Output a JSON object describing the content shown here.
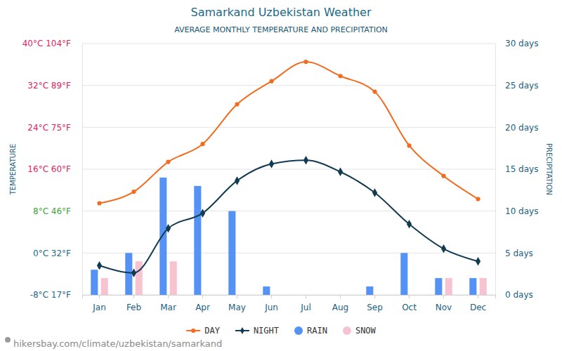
{
  "chart_data": {
    "type": "line",
    "title": "Samarkand Uzbekistan Weather",
    "subtitle": "AVERAGE MONTHLY TEMPERATURE AND PRECIPITATION",
    "y_label": "TEMPERATURE",
    "y2_label": "PRECIPITATION",
    "source": "hikersbay.com/climate/uzbekistan/samarkand",
    "categories": [
      "Jan",
      "Feb",
      "Mar",
      "Apr",
      "May",
      "Jun",
      "Jul",
      "Aug",
      "Sep",
      "Oct",
      "Nov",
      "Dec"
    ],
    "series": [
      {
        "name": "DAY",
        "type": "line",
        "color": "#f26c1f",
        "marker": "circle",
        "values": [
          9.5,
          11.7,
          17.4,
          20.8,
          28.4,
          32.8,
          36.5,
          33.8,
          30.8,
          20.5,
          14.7,
          10.3
        ]
      },
      {
        "name": "NIGHT",
        "type": "line",
        "color": "#123b52",
        "marker": "diamond",
        "values": [
          -2.4,
          -3.8,
          4.7,
          7.6,
          13.8,
          17.0,
          17.7,
          15.5,
          11.5,
          5.5,
          0.8,
          -1.6
        ]
      },
      {
        "name": "RAIN",
        "type": "bar",
        "axis": "y2",
        "color": "#5592f5",
        "values": [
          3,
          5,
          14,
          13,
          10,
          1,
          0,
          0,
          1,
          5,
          2,
          2
        ]
      },
      {
        "name": "SNOW",
        "type": "bar",
        "axis": "y2",
        "color": "#f8c3d0",
        "values": [
          2,
          4,
          4,
          0,
          0,
          0,
          0,
          0,
          0,
          0,
          2,
          2
        ]
      }
    ],
    "ylim": [
      -8,
      40
    ],
    "yticks": [
      {
        "value": -8,
        "label": "-8°C 17°F"
      },
      {
        "value": 0,
        "label": "0°C 32°F"
      },
      {
        "value": 8,
        "label": "8°C 46°F"
      },
      {
        "value": 16,
        "label": "16°C 60°F"
      },
      {
        "value": 24,
        "label": "24°C 75°F"
      },
      {
        "value": 32,
        "label": "32°C 89°F"
      },
      {
        "value": 40,
        "label": "40°C 104°F"
      }
    ],
    "y2lim": [
      0,
      30
    ],
    "y2ticks": [
      {
        "value": 0,
        "label": "0 days"
      },
      {
        "value": 5,
        "label": "5 days"
      },
      {
        "value": 10,
        "label": "10 days"
      },
      {
        "value": 15,
        "label": "15 days"
      },
      {
        "value": 20,
        "label": "20 days"
      },
      {
        "value": 25,
        "label": "25 days"
      },
      {
        "value": 30,
        "label": "30 days"
      }
    ],
    "grid": true,
    "legend": "bottom"
  }
}
